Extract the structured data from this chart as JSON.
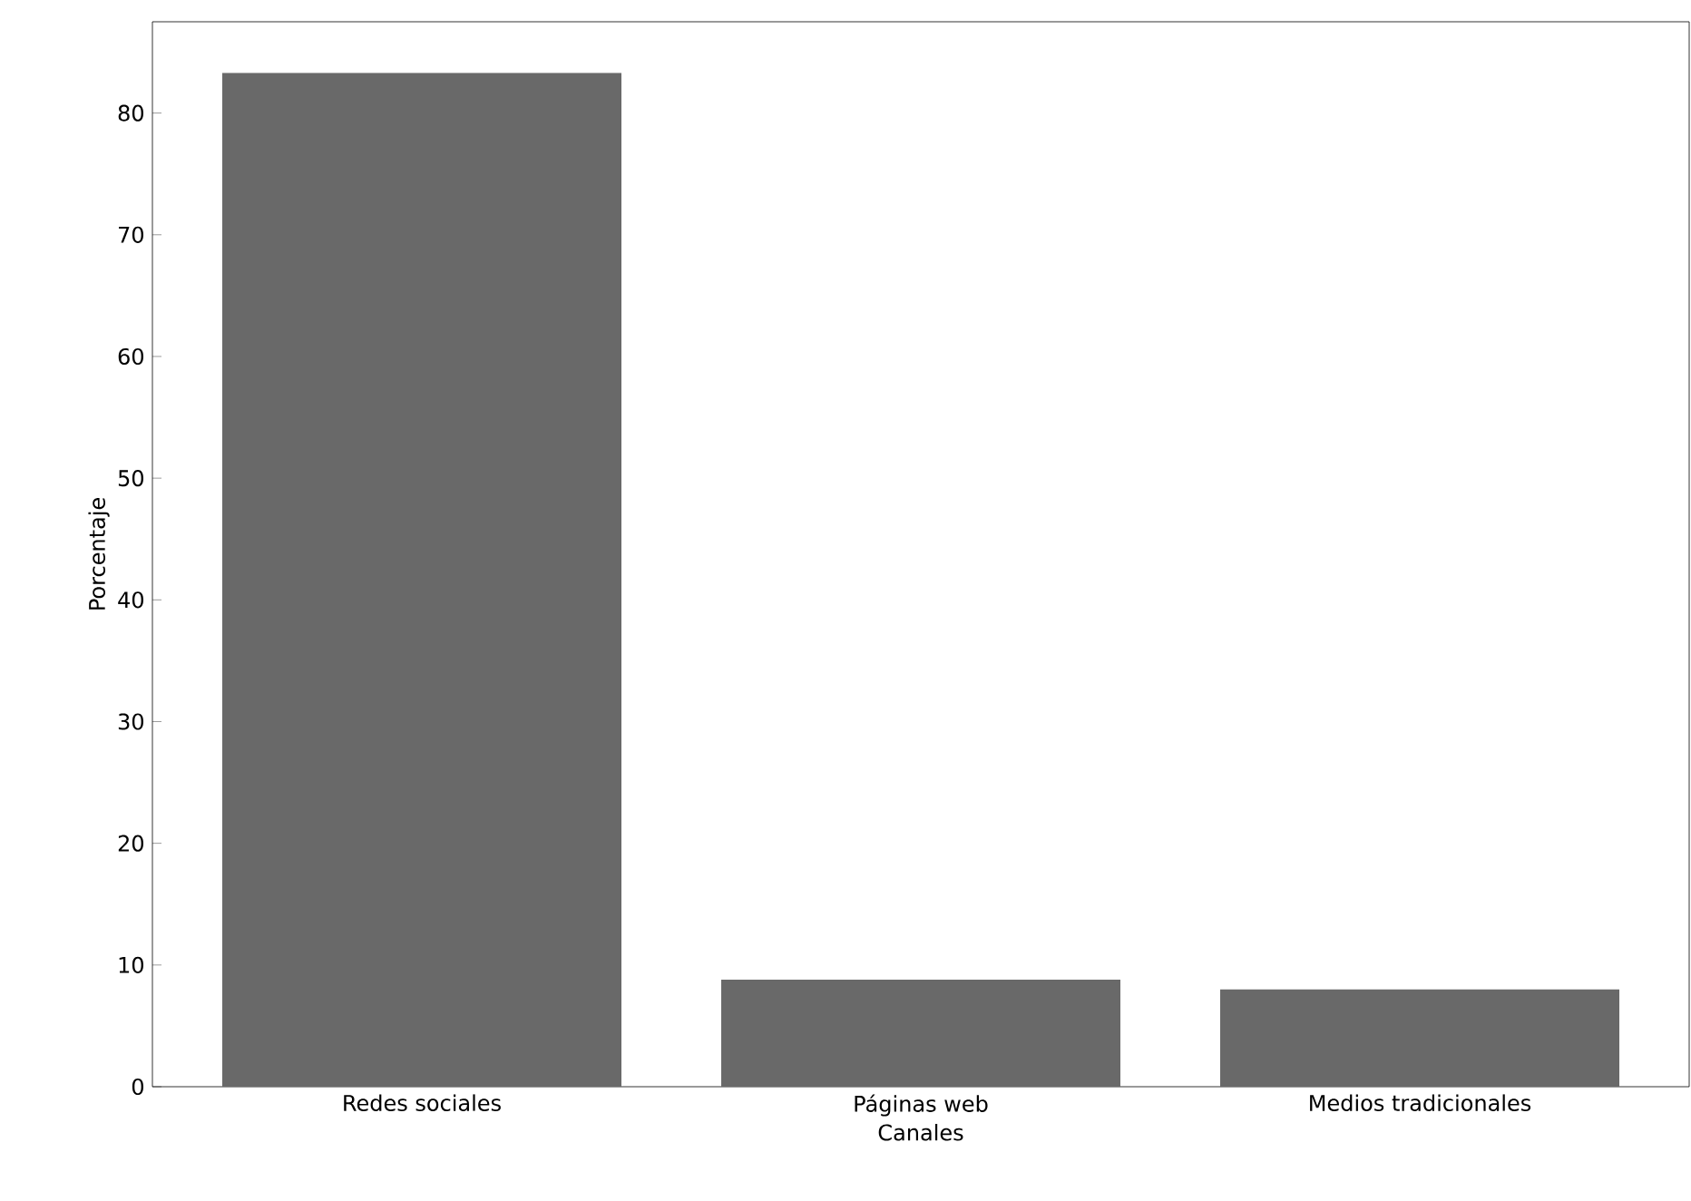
{
  "chart_data": {
    "type": "bar",
    "xlabel": "Canales",
    "ylabel": "Porcentaje",
    "categories": [
      "Redes sociales",
      "Páginas web",
      "Medios tradicionales"
    ],
    "values": [
      83.3,
      8.8,
      8.0
    ],
    "color": "#696969",
    "ylim": [
      0,
      87.5
    ],
    "yticks": [
      0,
      10,
      20,
      30,
      40,
      50,
      60,
      70,
      80
    ]
  }
}
